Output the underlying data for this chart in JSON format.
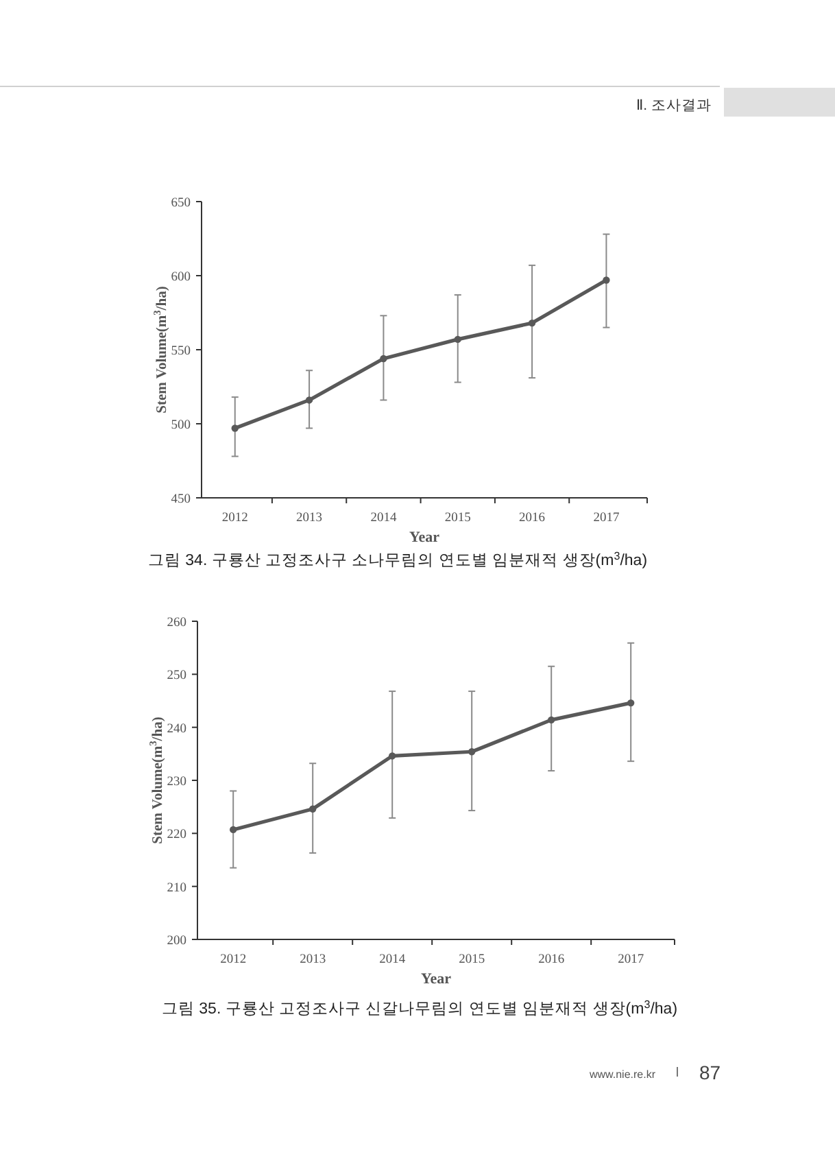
{
  "chart_data": [
    {
      "type": "line",
      "title": "그림 34. 구룡산 고정조사구 소나무림의 연도별 임분재적 생장(m$^{3}$/ha)",
      "xlabel": "Year",
      "ylabel": "Stem Volume(m$^{3}$/ha)",
      "categories": [
        "2012",
        "2013",
        "2014",
        "2015",
        "2016",
        "2017"
      ],
      "series": [
        {
          "color": "#595959",
          "values": [
            497,
            516,
            544,
            557,
            568,
            597
          ],
          "errors": [
            [
              478,
              518
            ],
            [
              497,
              536
            ],
            [
              516,
              573
            ],
            [
              528,
              587
            ],
            [
              531,
              607
            ],
            [
              565,
              628
            ]
          ]
        }
      ],
      "ylim": [
        450,
        650
      ],
      "yticks": [
        450,
        500,
        550,
        600,
        650
      ],
      "marker": "circle",
      "line_style": "solid",
      "annotations": [
        "Ⅱ. 조사결과"
      ]
    },
    {
      "type": "line",
      "title": "그림 35. 구룡산 고정조사구 신갈나무림의 연도별 임분재적 생장(m$^{3}$/ha)",
      "xlabel": "Year",
      "ylabel": "Stem Volume(m$^{3}$/ha)",
      "categories": [
        "2012",
        "2013",
        "2014",
        "2015",
        "2016",
        "2017"
      ],
      "series": [
        {
          "color": "#595959",
          "values": [
            220.7,
            224.6,
            234.6,
            235.4,
            241.4,
            244.6
          ],
          "errors": [
            [
              213.5,
              228
            ],
            [
              216.3,
              233.2
            ],
            [
              222.9,
              246.8
            ],
            [
              224.3,
              246.8
            ],
            [
              231.8,
              251.5
            ],
            [
              233.6,
              255.9
            ]
          ]
        }
      ],
      "ylim": [
        200,
        260
      ],
      "yticks": [
        200,
        210,
        220,
        230,
        240,
        250,
        260
      ],
      "marker": "circle",
      "line_style": "solid",
      "annotations": [
        "www.nie.re.kr",
        "87"
      ]
    }
  ]
}
